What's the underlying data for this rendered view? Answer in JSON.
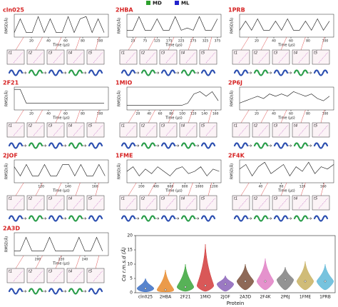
{
  "legend": [
    {
      "name": "MD",
      "color": "#2ca02c"
    },
    {
      "name": "ML",
      "color": "#2222cc"
    }
  ],
  "time_label": "Time (μs)",
  "rmsd_label": "RMSD(Å)",
  "frame_labels": [
    "t1",
    "t2",
    "t3",
    "t4",
    "t5"
  ],
  "panels": [
    {
      "title": "cln025",
      "xlim": [
        0,
        110
      ],
      "xticks": [
        20,
        40,
        60,
        80,
        100
      ],
      "ylim": [
        0,
        10
      ],
      "x": [
        0,
        7,
        14,
        21,
        28,
        35,
        42,
        49,
        56,
        63,
        70,
        77,
        84,
        91,
        98,
        105
      ],
      "values": [
        2,
        8,
        2,
        2,
        9,
        2,
        8,
        2,
        2,
        9,
        2,
        8,
        9,
        2,
        8,
        2
      ]
    },
    {
      "title": "2HBA",
      "xlim": [
        0,
        390
      ],
      "xticks": [
        25,
        75,
        125,
        175,
        225,
        275,
        325,
        375
      ],
      "ylim": [
        0,
        10
      ],
      "x": [
        0,
        25,
        50,
        75,
        100,
        125,
        150,
        175,
        200,
        225,
        250,
        275,
        300,
        325,
        350,
        375
      ],
      "values": [
        3,
        3,
        9,
        3,
        3,
        8,
        3,
        3,
        9,
        3,
        4,
        3,
        9,
        3,
        3,
        8
      ]
    },
    {
      "title": "1PRB",
      "xlim": [
        0,
        110
      ],
      "xticks": [
        20,
        40,
        60,
        80,
        100
      ],
      "ylim": [
        0,
        10
      ],
      "x": [
        0,
        7,
        14,
        21,
        28,
        35,
        42,
        49,
        56,
        63,
        70,
        77,
        84,
        91,
        98,
        105
      ],
      "values": [
        3,
        7,
        3,
        8,
        3,
        3,
        7,
        3,
        8,
        3,
        3,
        7,
        3,
        8,
        3,
        7
      ]
    },
    {
      "title": "2F21",
      "xlim": [
        0,
        110
      ],
      "xticks": [
        20,
        40,
        60,
        80,
        100
      ],
      "ylim": [
        0,
        10
      ],
      "x": [
        0,
        7,
        14,
        21,
        28,
        35,
        42,
        49,
        56,
        63,
        70,
        77,
        84,
        91,
        98,
        105
      ],
      "values": [
        9,
        9,
        3,
        3,
        3,
        3,
        3,
        3,
        3,
        3,
        3,
        3,
        3,
        3,
        3,
        3
      ]
    },
    {
      "title": "1MIO",
      "xlim": [
        0,
        170
      ],
      "xticks": [
        20,
        40,
        60,
        80,
        100,
        120,
        140,
        160
      ],
      "ylim": [
        0,
        10
      ],
      "x": [
        0,
        11,
        22,
        33,
        44,
        55,
        66,
        77,
        88,
        99,
        110,
        121,
        132,
        143,
        154,
        165
      ],
      "values": [
        2,
        2,
        2,
        2,
        2,
        2,
        2,
        2,
        2,
        2,
        3,
        7,
        8,
        6,
        8,
        4
      ]
    },
    {
      "title": "2P6J",
      "xlim": [
        0,
        110
      ],
      "xticks": [
        20,
        40,
        60,
        80,
        100
      ],
      "ylim": [
        0,
        10
      ],
      "x": [
        0,
        7,
        14,
        21,
        28,
        35,
        42,
        49,
        56,
        63,
        70,
        77,
        84,
        91,
        98,
        105
      ],
      "values": [
        3,
        4,
        5,
        6,
        5,
        7,
        6,
        7,
        6,
        8,
        7,
        6,
        7,
        5,
        4,
        6
      ]
    },
    {
      "title": "2JOF",
      "xlim": [
        100,
        170
      ],
      "xticks": [
        120,
        140,
        160
      ],
      "ylim": [
        0,
        10
      ],
      "x": [
        100,
        104.5,
        109,
        113.5,
        118,
        122.5,
        127,
        131.5,
        136,
        140.5,
        145,
        149.5,
        154,
        158.5,
        163,
        167.5
      ],
      "values": [
        7,
        3,
        8,
        3,
        3,
        8,
        3,
        3,
        8,
        8,
        3,
        8,
        3,
        3,
        8,
        3
      ]
    },
    {
      "title": "1FME",
      "xlim": [
        0,
        1300
      ],
      "xticks": [
        200,
        400,
        600,
        800,
        1000,
        1200
      ],
      "ylim": [
        0,
        10
      ],
      "x": [
        0,
        85,
        170,
        255,
        340,
        425,
        510,
        595,
        680,
        765,
        850,
        935,
        1020,
        1105,
        1190,
        1275
      ],
      "values": [
        5,
        7,
        3,
        6,
        4,
        7,
        5,
        3,
        6,
        7,
        4,
        5,
        7,
        3,
        6,
        5
      ]
    },
    {
      "title": "2F4K",
      "xlim": [
        0,
        180
      ],
      "xticks": [
        40,
        80,
        120,
        160
      ],
      "ylim": [
        0,
        10
      ],
      "x": [
        0,
        12,
        24,
        36,
        48,
        60,
        72,
        84,
        96,
        108,
        120,
        132,
        144,
        156,
        168,
        180
      ],
      "values": [
        6,
        8,
        3,
        7,
        9,
        4,
        6,
        8,
        3,
        7,
        5,
        9,
        4,
        7,
        6,
        8
      ]
    },
    {
      "title": "2A3D",
      "xlim": [
        180,
        260
      ],
      "xticks": [
        200,
        220,
        240
      ],
      "ylim": [
        0,
        10
      ],
      "x": [
        180,
        185,
        190,
        195,
        200,
        205,
        210,
        215,
        220,
        225,
        230,
        235,
        240,
        245,
        250,
        255
      ],
      "values": [
        2,
        2,
        8,
        2,
        2,
        2,
        8,
        2,
        2,
        2,
        2,
        8,
        2,
        2,
        8,
        2
      ]
    }
  ],
  "chart_data": {
    "type": "violin",
    "ylabel": "Cα r.m.s.d (Å)",
    "xlabel": "Protein",
    "ylim": [
      0,
      20
    ],
    "yticks": [
      0,
      5,
      10,
      15,
      20
    ],
    "categories": [
      "cln025",
      "2HBA",
      "2F21",
      "1MIO",
      "2JOF",
      "2A3D",
      "2F4K",
      "2P6J",
      "1FME",
      "1PRB"
    ],
    "colors": [
      "#3b6fc4",
      "#e8892b",
      "#3aa53a",
      "#d23b3b",
      "#8a62b8",
      "#7a4f3a",
      "#e07fc4",
      "#808080",
      "#c8b060",
      "#5fb8d8"
    ],
    "medians": [
      1.5,
      1,
      2,
      2.5,
      3,
      4,
      4,
      4.5,
      4,
      4
    ],
    "mins": [
      0.3,
      0.3,
      0.5,
      0.5,
      0.5,
      1,
      1,
      1,
      1,
      1
    ],
    "maxima": [
      5,
      8,
      10,
      17,
      6,
      10,
      12,
      9,
      11,
      10
    ]
  }
}
